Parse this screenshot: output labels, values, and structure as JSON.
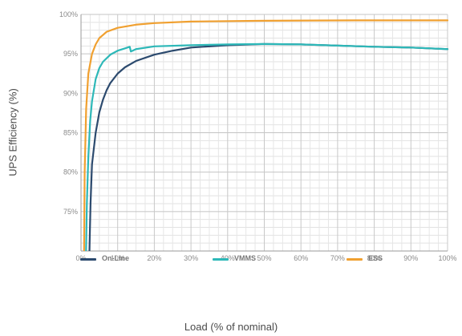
{
  "chart_data": {
    "type": "line",
    "title": "",
    "ylabel": "UPS Efficiency (%)",
    "xlabel": "Load (% of nominal)",
    "xlim": [
      0,
      100
    ],
    "ylim": [
      70,
      100
    ],
    "x_ticks": [
      0,
      10,
      20,
      30,
      40,
      50,
      60,
      70,
      80,
      90,
      100
    ],
    "x_tick_labels": [
      "0%",
      "10%",
      "20%",
      "30%",
      "40%",
      "50%",
      "60%",
      "70%",
      "80%",
      "90%",
      "100%"
    ],
    "y_ticks": [
      75,
      80,
      85,
      90,
      95,
      100
    ],
    "y_tick_labels": [
      "75%",
      "80%",
      "85%",
      "90%",
      "95%",
      "100%"
    ],
    "grid": true,
    "legend_position": "bottom",
    "series": [
      {
        "name": "On-Line",
        "color": "#2c4a6e",
        "points": [
          [
            2.2,
            68
          ],
          [
            2.6,
            76
          ],
          [
            3,
            81
          ],
          [
            4,
            85
          ],
          [
            5,
            87.6
          ],
          [
            6,
            89.2
          ],
          [
            7,
            90.4
          ],
          [
            8,
            91.3
          ],
          [
            10,
            92.5
          ],
          [
            12,
            93.3
          ],
          [
            15,
            94.1
          ],
          [
            20,
            94.9
          ],
          [
            25,
            95.4
          ],
          [
            30,
            95.8
          ],
          [
            40,
            96.1
          ],
          [
            50,
            96.25
          ],
          [
            60,
            96.2
          ],
          [
            70,
            96.05
          ],
          [
            80,
            95.9
          ],
          [
            90,
            95.8
          ],
          [
            100,
            95.6
          ]
        ]
      },
      {
        "name": "VMMS",
        "color": "#2db8b8",
        "points": [
          [
            1.3,
            68
          ],
          [
            1.6,
            76
          ],
          [
            2,
            82
          ],
          [
            2.5,
            86.5
          ],
          [
            3,
            89
          ],
          [
            4,
            91.8
          ],
          [
            5,
            93.2
          ],
          [
            6,
            94
          ],
          [
            8,
            94.9
          ],
          [
            10,
            95.4
          ],
          [
            12,
            95.7
          ],
          [
            13.3,
            95.9
          ],
          [
            13.6,
            95.3
          ],
          [
            15,
            95.6
          ],
          [
            20,
            95.95
          ],
          [
            30,
            96.1
          ],
          [
            40,
            96.2
          ],
          [
            50,
            96.25
          ],
          [
            60,
            96.2
          ],
          [
            70,
            96.05
          ],
          [
            80,
            95.9
          ],
          [
            90,
            95.8
          ],
          [
            100,
            95.6
          ]
        ]
      },
      {
        "name": "ESS",
        "color": "#f0a030",
        "points": [
          [
            0.8,
            68
          ],
          [
            1,
            80
          ],
          [
            1.4,
            88
          ],
          [
            2,
            92.5
          ],
          [
            3,
            95
          ],
          [
            4,
            96.2
          ],
          [
            5,
            97
          ],
          [
            7,
            97.8
          ],
          [
            10,
            98.3
          ],
          [
            15,
            98.7
          ],
          [
            20,
            98.9
          ],
          [
            30,
            99.1
          ],
          [
            50,
            99.2
          ],
          [
            75,
            99.25
          ],
          [
            100,
            99.25
          ]
        ]
      }
    ]
  }
}
